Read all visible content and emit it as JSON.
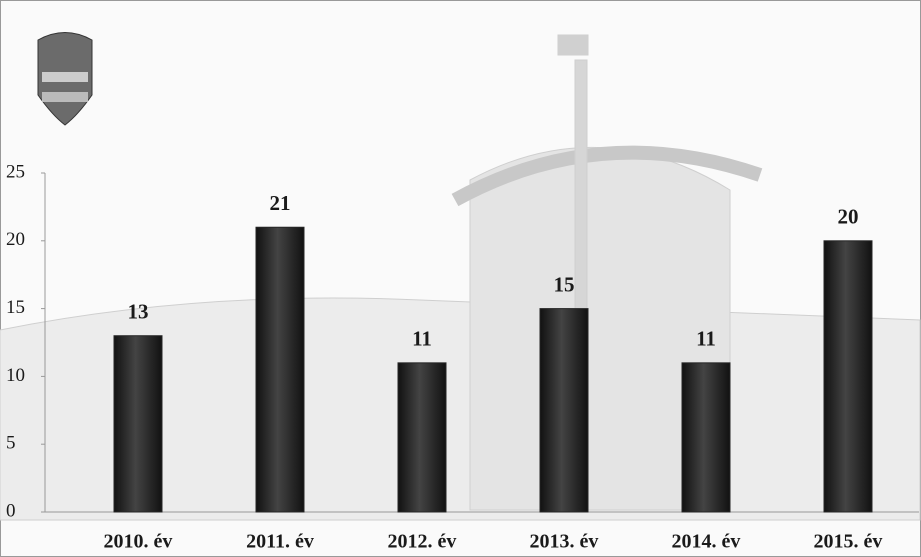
{
  "chart_data": {
    "type": "bar",
    "categories": [
      "2010. év",
      "2011. év",
      "2012. év",
      "2013. év",
      "2014. év",
      "2015. év"
    ],
    "values": [
      13,
      21,
      11,
      15,
      11,
      20
    ],
    "color": "#262626",
    "ylim": [
      0,
      25
    ],
    "yticks": [
      0,
      5,
      10,
      15,
      20,
      25
    ],
    "grid": false
  }
}
